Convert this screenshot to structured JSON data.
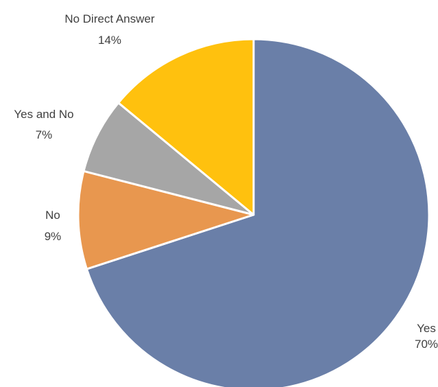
{
  "chart_data": {
    "type": "pie",
    "title": "",
    "start_angle_deg": 0,
    "direction": "clockwise",
    "legend": "none",
    "slices": [
      {
        "label": "Yes",
        "percent_label": "70%",
        "value": 70,
        "color": "#6A7FA8"
      },
      {
        "label": "No",
        "percent_label": "9%",
        "value": 9,
        "color": "#E8974F"
      },
      {
        "label": "Yes and No",
        "percent_label": "7%",
        "value": 7,
        "color": "#A6A6A6"
      },
      {
        "label": "No Direct Answer",
        "percent_label": "14%",
        "value": 14,
        "color": "#FFC10E"
      }
    ]
  }
}
